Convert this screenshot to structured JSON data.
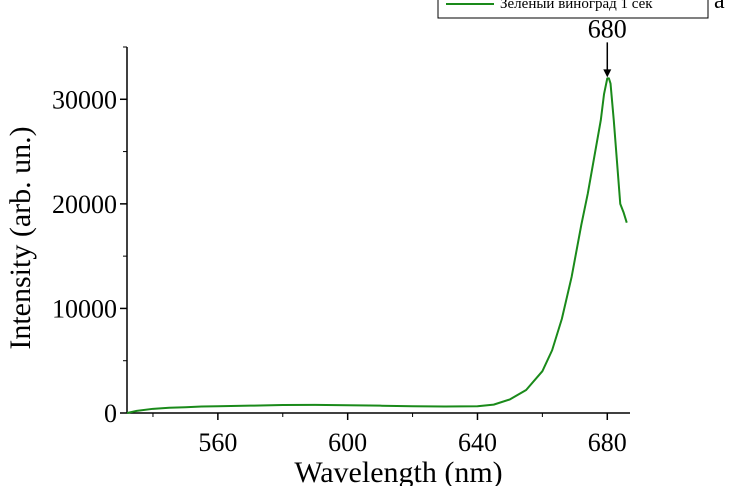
{
  "chart_data": {
    "type": "line",
    "xlabel": "Wavelength (nm)",
    "ylabel": "Intensity (arb. un.)",
    "xlim": [
      532,
      687
    ],
    "ylim": [
      0,
      35000
    ],
    "x_ticks": [
      560,
      600,
      640,
      680
    ],
    "x_tick_labels": [
      "560",
      "600",
      "640",
      "680"
    ],
    "y_ticks": [
      0,
      10000,
      20000,
      30000
    ],
    "y_tick_labels": [
      "0",
      "10000",
      "20000",
      "30000"
    ],
    "legend_placement": "top-right",
    "panel_label": "a",
    "grid": false,
    "series": [
      {
        "name": "Зеленый виноград 1 сек",
        "color": "#1a8a1a",
        "x": [
          532,
          535,
          540,
          545,
          550,
          555,
          560,
          570,
          580,
          590,
          600,
          610,
          620,
          630,
          640,
          645,
          650,
          655,
          660,
          663,
          666,
          669,
          672,
          674,
          676,
          678,
          679,
          680,
          680.5,
          681,
          682,
          683,
          684,
          685,
          686
        ],
        "y": [
          0,
          200,
          400,
          500,
          550,
          620,
          650,
          700,
          760,
          780,
          740,
          700,
          650,
          620,
          650,
          800,
          1300,
          2200,
          4000,
          6000,
          9000,
          13000,
          18000,
          21000,
          24500,
          28000,
          30500,
          32000,
          32000,
          31500,
          28000,
          24000,
          20000,
          19200,
          18200
        ]
      }
    ],
    "annotations": [
      {
        "text": "680",
        "x": 680,
        "y": 32000
      }
    ]
  }
}
